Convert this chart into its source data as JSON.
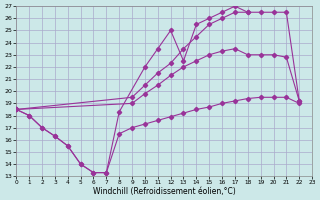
{
  "xlabel": "Windchill (Refroidissement éolien,°C)",
  "xlim": [
    0,
    23
  ],
  "ylim": [
    13,
    27
  ],
  "ytick_vals": [
    13,
    14,
    15,
    16,
    17,
    18,
    19,
    20,
    21,
    22,
    23,
    24,
    25,
    26,
    27
  ],
  "xtick_vals": [
    0,
    1,
    2,
    3,
    4,
    5,
    6,
    7,
    8,
    9,
    10,
    11,
    12,
    13,
    14,
    15,
    16,
    17,
    18,
    19,
    20,
    21,
    22,
    23
  ],
  "bg_color": "#cce8e8",
  "grid_color": "#aaaacc",
  "line_color": "#993399",
  "series1_x": [
    0,
    1,
    2,
    3,
    4,
    5,
    6,
    7,
    8,
    9,
    10,
    11,
    12,
    13,
    14,
    15,
    16,
    17,
    18,
    19,
    20,
    21,
    22
  ],
  "series1_y": [
    18.5,
    18.0,
    17.0,
    16.3,
    15.5,
    14.0,
    13.3,
    13.3,
    16.5,
    17.0,
    17.3,
    17.6,
    17.9,
    18.2,
    18.5,
    18.7,
    19.0,
    19.2,
    19.4,
    19.5,
    19.5,
    19.5,
    19.0
  ],
  "series2_x": [
    0,
    1,
    2,
    3,
    4,
    5,
    6,
    7,
    8,
    10,
    11,
    12,
    13,
    14,
    15,
    16,
    17,
    18
  ],
  "series2_y": [
    18.5,
    18.0,
    17.0,
    16.3,
    15.5,
    14.0,
    13.3,
    13.3,
    18.3,
    22.0,
    23.5,
    25.0,
    22.5,
    25.5,
    26.0,
    26.5,
    27.0,
    26.5
  ],
  "series3_x": [
    0,
    9,
    10,
    11,
    12,
    13,
    14,
    15,
    16,
    17,
    18,
    19,
    20,
    21,
    22
  ],
  "series3_y": [
    18.5,
    19.5,
    20.5,
    21.5,
    22.3,
    23.5,
    24.5,
    25.5,
    26.0,
    26.5,
    26.5,
    26.5,
    26.5,
    26.5,
    19.2
  ],
  "series4_x": [
    0,
    9,
    10,
    11,
    12,
    13,
    14,
    15,
    16,
    17,
    18,
    19,
    20,
    21,
    22
  ],
  "series4_y": [
    18.5,
    19.0,
    19.8,
    20.5,
    21.3,
    22.0,
    22.5,
    23.0,
    23.3,
    23.5,
    23.0,
    23.0,
    23.0,
    22.8,
    19.2
  ]
}
